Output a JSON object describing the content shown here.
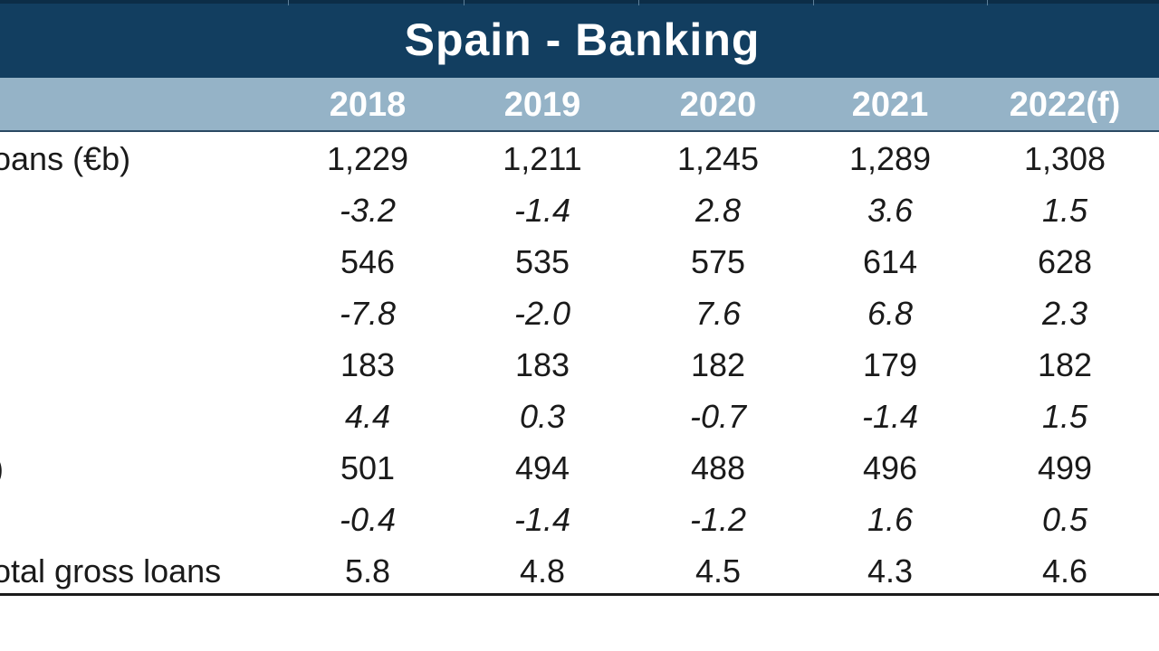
{
  "chart_data": {
    "type": "table",
    "title": "Spain - Banking",
    "columns": [
      "2018",
      "2019",
      "2020",
      "2021",
      "2022(f)"
    ],
    "rows": [
      {
        "label": "oans (€b)",
        "values": [
          "1,229",
          "1,211",
          "1,245",
          "1,289",
          "1,308"
        ],
        "italic": false
      },
      {
        "label": "",
        "values": [
          "-3.2",
          "-1.4",
          "2.8",
          "3.6",
          "1.5"
        ],
        "italic": true
      },
      {
        "label": "",
        "values": [
          "546",
          "535",
          "575",
          "614",
          "628"
        ],
        "italic": false
      },
      {
        "label": "",
        "values": [
          "-7.8",
          "-2.0",
          "7.6",
          "6.8",
          "2.3"
        ],
        "italic": true
      },
      {
        "label": "",
        "values": [
          "183",
          "183",
          "182",
          "179",
          "182"
        ],
        "italic": false
      },
      {
        "label": "",
        "values": [
          "4.4",
          "0.3",
          "-0.7",
          "-1.4",
          "1.5"
        ],
        "italic": true
      },
      {
        "label": ")",
        "values": [
          "501",
          "494",
          "488",
          "496",
          "499"
        ],
        "italic": false
      },
      {
        "label": "",
        "values": [
          "-0.4",
          "-1.4",
          "-1.2",
          "1.6",
          "0.5"
        ],
        "italic": true
      },
      {
        "label": "otal gross loans",
        "values": [
          "5.8",
          "4.8",
          "4.5",
          "4.3",
          "4.6"
        ],
        "italic": false
      }
    ]
  },
  "colors": {
    "title_bg": "#123e60",
    "header_bg": "#95b3c7",
    "header_text": "#ffffff",
    "body_text": "#1a1a1a"
  }
}
